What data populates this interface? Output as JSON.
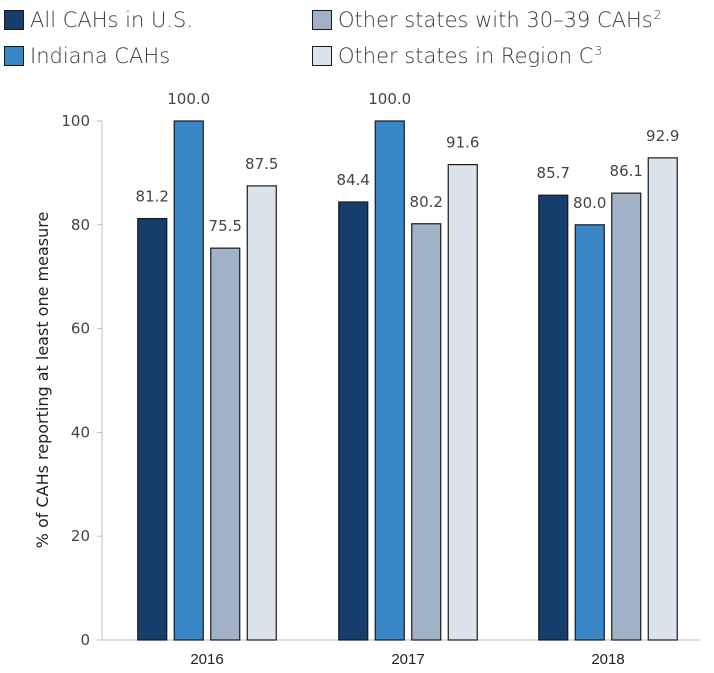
{
  "legend": [
    {
      "label": "All CAHs in U.S.",
      "sup": "",
      "color": "#163e6c"
    },
    {
      "label": "Indiana CAHs",
      "sup": "",
      "color": "#3a87c8"
    },
    {
      "label": "Other states with 30–39 CAHs",
      "sup": "2",
      "color": "#a1b1c6"
    },
    {
      "label": "Other states in Region C",
      "sup": "3",
      "color": "#dde3ed"
    }
  ],
  "chart_data": {
    "type": "bar",
    "categories": [
      "2016",
      "2017",
      "2018"
    ],
    "series": [
      {
        "name": "All CAHs in U.S.",
        "values": [
          81.2,
          84.4,
          85.7
        ],
        "labels": [
          "81.2",
          "84.4",
          "85.7"
        ],
        "color": "#163e6c"
      },
      {
        "name": "Indiana CAHs",
        "values": [
          100.0,
          100.0,
          80.0
        ],
        "labels": [
          "100.0",
          "100.0",
          "80.0"
        ],
        "color": "#3a87c8"
      },
      {
        "name": "Other states with 30–39 CAHs",
        "values": [
          75.5,
          80.2,
          86.1
        ],
        "labels": [
          "75.5",
          "80.2",
          "86.1"
        ],
        "color": "#a1b1c6"
      },
      {
        "name": "Other states in Region C",
        "values": [
          87.5,
          91.6,
          92.9
        ],
        "labels": [
          "87.5",
          "91.6",
          "92.9"
        ],
        "color": "#dde3ed"
      }
    ],
    "ylabel": "% of CAHs reporting at least one measure",
    "ylim": [
      0,
      100
    ],
    "yticks": [
      0,
      20,
      40,
      60,
      80,
      100
    ],
    "ytick_labels": [
      "0",
      "20",
      "40",
      "60",
      "80",
      "100"
    ],
    "grid": false,
    "legend_position": "top"
  }
}
